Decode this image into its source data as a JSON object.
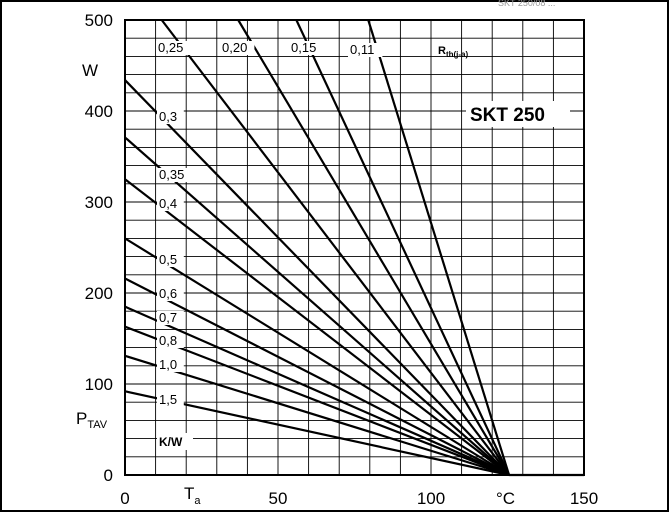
{
  "header_code": "SKT 250/08 ...",
  "chart_data": {
    "type": "line",
    "title": "SKT 250",
    "xlabel": "°C",
    "xlabel_sub": "T",
    "xlabel_subscript": "a",
    "ylabel_unit": "W",
    "ylabel_main": "P",
    "ylabel_subscript": "TAV",
    "legend_title_main": "R",
    "legend_title_subscript": "th(j-a)",
    "legend_unit": "K/W",
    "xlim": [
      0,
      150
    ],
    "ylim": [
      0,
      500
    ],
    "x_ticks": [
      "0",
      "50",
      "100",
      "150"
    ],
    "y_ticks": [
      "0",
      "100",
      "200",
      "300",
      "400",
      "500"
    ],
    "grid": true,
    "series": [
      {
        "name": "0,11",
        "x": [
          79.5,
          125.5
        ],
        "y": [
          500,
          0
        ]
      },
      {
        "name": "0,15",
        "x": [
          56,
          125.5
        ],
        "y": [
          500,
          0
        ]
      },
      {
        "name": "0,20",
        "x": [
          37,
          125.5
        ],
        "y": [
          500,
          0
        ]
      },
      {
        "name": "0,25",
        "x": [
          12,
          125.5
        ],
        "y": [
          500,
          0
        ]
      },
      {
        "name": "0,3",
        "x": [
          0,
          125.5
        ],
        "y": [
          434,
          0
        ]
      },
      {
        "name": "0,35",
        "x": [
          0,
          125.5
        ],
        "y": [
          371,
          0
        ]
      },
      {
        "name": "0,4",
        "x": [
          0,
          125.5
        ],
        "y": [
          325,
          0
        ]
      },
      {
        "name": "0,5",
        "x": [
          0,
          125.5
        ],
        "y": [
          260,
          0
        ]
      },
      {
        "name": "0,6",
        "x": [
          0,
          125.5
        ],
        "y": [
          216,
          0
        ]
      },
      {
        "name": "0,7",
        "x": [
          0,
          125.5
        ],
        "y": [
          185,
          0
        ]
      },
      {
        "name": "0,8",
        "x": [
          0,
          125.5
        ],
        "y": [
          163,
          0
        ]
      },
      {
        "name": "1,0",
        "x": [
          0,
          125.5
        ],
        "y": [
          131,
          0
        ]
      },
      {
        "name": "1,5",
        "x": [
          0,
          125.5
        ],
        "y": [
          92,
          0
        ]
      }
    ],
    "baseline": {
      "x": [
        125.5,
        150
      ],
      "y": [
        0,
        0
      ]
    }
  }
}
